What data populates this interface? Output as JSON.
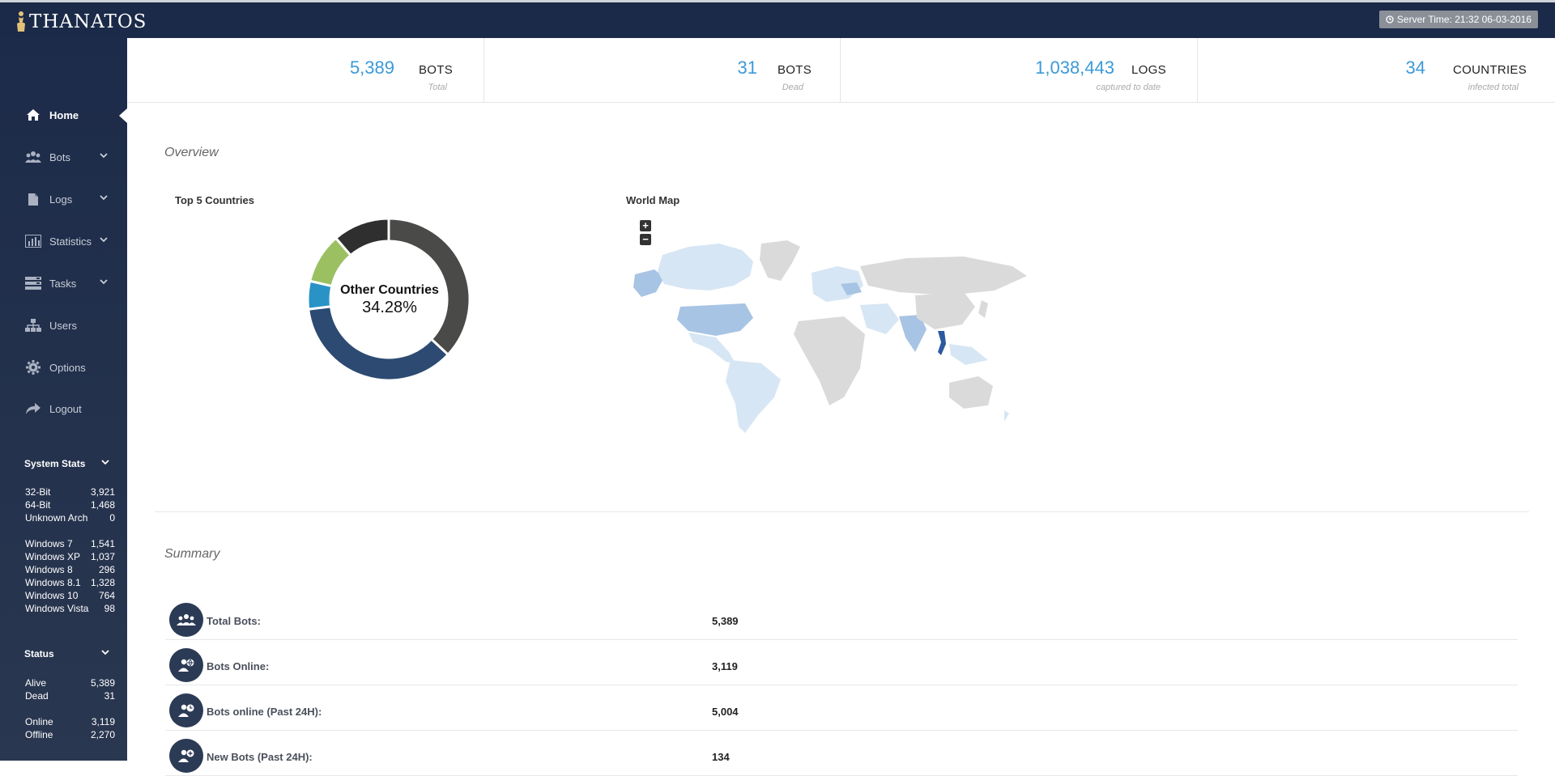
{
  "app": {
    "logo_text": "THANATOS"
  },
  "header": {
    "server_time": "Server Time: 21:32 06-03-2016"
  },
  "sidebar": {
    "nav": [
      {
        "label": "Home",
        "icon": "home-icon",
        "active": true
      },
      {
        "label": "Bots",
        "icon": "users-icon",
        "expandable": true
      },
      {
        "label": "Logs",
        "icon": "file-icon",
        "expandable": true
      },
      {
        "label": "Statistics",
        "icon": "bar-chart-icon",
        "expandable": true
      },
      {
        "label": "Tasks",
        "icon": "tasks-icon",
        "expandable": true
      },
      {
        "label": "Users",
        "icon": "sitemap-icon"
      },
      {
        "label": "Options",
        "icon": "gear-icon"
      },
      {
        "label": "Logout",
        "icon": "share-icon"
      }
    ],
    "system_stats": {
      "title": "System Stats",
      "arch": [
        {
          "label": "32-Bit",
          "value": "3,921"
        },
        {
          "label": "64-Bit",
          "value": "1,468"
        },
        {
          "label": "Unknown Arch",
          "value": "0"
        }
      ],
      "os": [
        {
          "label": "Windows 7",
          "value": "1,541"
        },
        {
          "label": "Windows XP",
          "value": "1,037"
        },
        {
          "label": "Windows 8",
          "value": "296"
        },
        {
          "label": "Windows 8.1",
          "value": "1,328"
        },
        {
          "label": "Windows 10",
          "value": "764"
        },
        {
          "label": "Windows Vista",
          "value": "98"
        }
      ]
    },
    "status": {
      "title": "Status",
      "alive": [
        {
          "label": "Alive",
          "value": "5,389"
        },
        {
          "label": "Dead",
          "value": "31"
        }
      ],
      "online": [
        {
          "label": "Online",
          "value": "3,119"
        },
        {
          "label": "Offline",
          "value": "2,270"
        }
      ]
    }
  },
  "stats": [
    {
      "number": "5,389",
      "unit": "BOTS",
      "sub": "Total"
    },
    {
      "number": "31",
      "unit": "BOTS",
      "sub": "Dead"
    },
    {
      "number": "1,038,443",
      "unit": "LOGS",
      "sub": "captured to date"
    },
    {
      "number": "34",
      "unit": "COUNTRIES",
      "sub": "infected total"
    }
  ],
  "overview": {
    "title": "Overview",
    "top5_label": "Top 5 Countries",
    "world_map_label": "World Map",
    "zoom_in": "+",
    "zoom_out": "−"
  },
  "chart_data": {
    "type": "pie",
    "title": "Top 5 Countries",
    "center_label": "Other Countries",
    "center_value": "34.28%",
    "slices": [
      {
        "name": "Other Countries",
        "value": 34.28,
        "color": "#4a4a48"
      },
      {
        "name": "",
        "value": 33.5,
        "color": "#2c4a72"
      },
      {
        "name": "",
        "value": 5.2,
        "color": "#2a93c6"
      },
      {
        "name": "",
        "value": 9.3,
        "color": "#9bc062"
      },
      {
        "name": "",
        "value": 10.5,
        "color": "#2f2f2f"
      }
    ],
    "legend": "none"
  },
  "map_colors": {
    "land": "#dadada",
    "light": "#d7e6f4",
    "medium": "#a8c4e4",
    "dark": "#2c5aa0"
  },
  "summary": {
    "title": "Summary",
    "rows": [
      {
        "label": "Total Bots:",
        "value": "5,389",
        "icon": "users-group-icon"
      },
      {
        "label": "Bots Online:",
        "value": "3,119",
        "icon": "user-globe-icon"
      },
      {
        "label": "Bots online (Past 24H):",
        "value": "5,004",
        "icon": "user-clock-icon"
      },
      {
        "label": "New Bots (Past 24H):",
        "value": "134",
        "icon": "user-plus-icon"
      }
    ]
  }
}
